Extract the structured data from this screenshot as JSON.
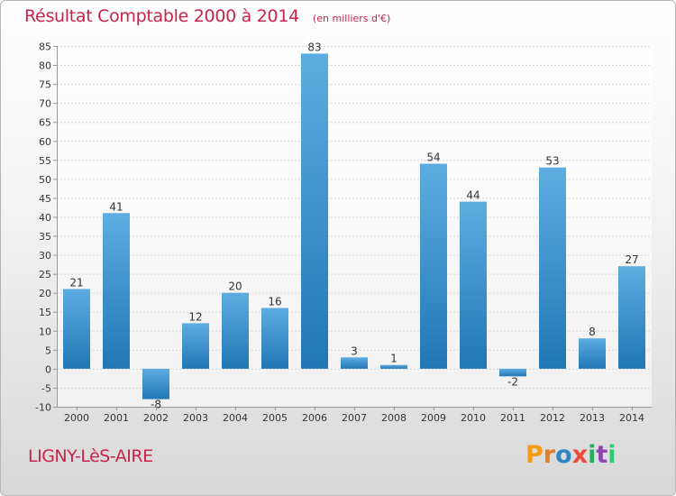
{
  "header": {
    "title": "Résultat Comptable 2000 à 2014",
    "subtitle": "(en milliers d'€)"
  },
  "footer": {
    "commune": "LIGNY-LèS-AIRE",
    "logo_letters": [
      "P",
      "r",
      "o",
      "x",
      "i",
      "t",
      "i"
    ],
    "logo_colors": [
      "#f39c12",
      "#e67e22",
      "#2e86c1",
      "#e74c3c",
      "#27ae60",
      "#8e44ad",
      "#2ecc71"
    ]
  },
  "chart_data": {
    "type": "bar",
    "categories": [
      "2000",
      "2001",
      "2002",
      "2003",
      "2004",
      "2005",
      "2006",
      "2007",
      "2008",
      "2009",
      "2010",
      "2011",
      "2012",
      "2013",
      "2014"
    ],
    "values": [
      21,
      41,
      -8,
      12,
      20,
      16,
      83,
      3,
      1,
      54,
      44,
      -2,
      53,
      8,
      27
    ],
    "ylim": [
      -10,
      85
    ],
    "yticks": [
      -10,
      -5,
      0,
      5,
      10,
      15,
      20,
      25,
      30,
      35,
      40,
      45,
      50,
      55,
      60,
      65,
      70,
      75,
      80,
      85
    ],
    "grid": true,
    "bar_color_light": "#5dade2",
    "bar_color_dark": "#2176b5"
  }
}
